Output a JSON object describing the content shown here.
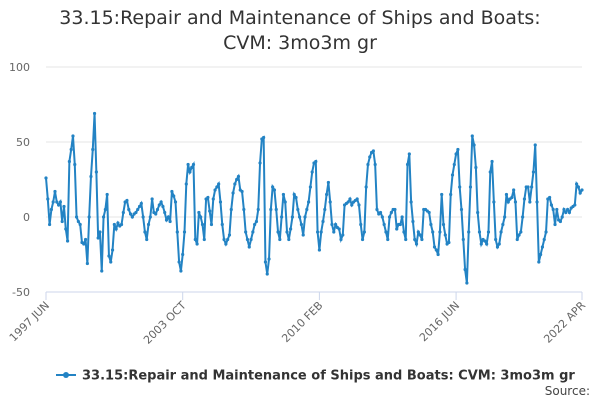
{
  "chart_data": {
    "type": "line",
    "title": "33.15:Repair and Maintenance of Ships and Boats: CVM: 3mo3m gr",
    "source": "Source:",
    "categories": [
      "1997 JUN",
      null,
      null,
      null,
      null,
      null,
      null,
      null,
      null,
      null,
      null,
      null,
      null,
      null,
      null,
      null,
      null,
      null,
      null,
      null,
      null,
      null,
      null,
      null,
      null,
      null,
      null,
      null,
      null,
      null,
      null,
      null,
      null,
      null,
      null,
      null,
      null,
      null,
      null,
      null,
      null,
      null,
      null,
      null,
      null,
      null,
      null,
      null,
      null,
      null,
      null,
      null,
      null,
      null,
      null,
      null,
      null,
      null,
      null,
      null,
      null,
      null,
      null,
      null,
      null,
      null,
      null,
      null,
      null,
      null,
      null,
      null,
      null,
      null,
      null,
      null,
      "2003 OCT",
      null,
      null,
      null,
      null,
      null,
      null,
      null,
      null,
      null,
      null,
      null,
      null,
      null,
      null,
      null,
      null,
      null,
      null,
      null,
      null,
      null,
      null,
      null,
      null,
      null,
      null,
      null,
      null,
      null,
      null,
      null,
      null,
      null,
      null,
      null,
      null,
      null,
      null,
      null,
      null,
      null,
      null,
      null,
      null,
      null,
      null,
      null,
      null,
      null,
      null,
      null,
      null,
      null,
      null,
      null,
      null,
      null,
      null,
      null,
      null,
      null,
      null,
      null,
      null,
      null,
      null,
      null,
      null,
      null,
      null,
      null,
      null,
      null,
      null,
      null,
      "2010 FEB",
      null,
      null,
      null,
      null,
      null,
      null,
      null,
      null,
      null,
      null,
      null,
      null,
      null,
      null,
      null,
      null,
      null,
      null,
      null,
      null,
      null,
      null,
      null,
      null,
      null,
      null,
      null,
      null,
      null,
      null,
      null,
      null,
      null,
      null,
      null,
      null,
      null,
      null,
      null,
      null,
      null,
      null,
      null,
      null,
      null,
      null,
      null,
      null,
      null,
      null,
      null,
      null,
      null,
      null,
      null,
      null,
      null,
      null,
      null,
      null,
      null,
      null,
      null,
      null,
      null,
      null,
      null,
      null,
      null,
      null,
      null,
      null,
      null,
      null,
      null,
      "2016 JUN",
      null,
      null,
      null,
      null,
      null,
      null,
      null,
      null,
      null,
      null,
      null,
      null,
      null,
      null,
      null,
      null,
      null,
      null,
      null,
      null,
      null,
      null,
      null,
      null,
      null,
      null,
      null,
      null,
      null,
      null,
      null,
      null,
      null,
      null,
      null,
      null,
      null,
      null,
      null,
      null,
      null,
      null,
      null,
      null,
      null,
      null,
      null,
      null,
      null,
      null,
      null,
      null,
      null,
      null,
      null,
      null,
      null,
      null,
      null,
      null,
      null,
      null,
      null,
      null,
      null,
      null,
      null,
      null,
      null,
      "2022 APR"
    ],
    "series": [
      {
        "name": "33.15:Repair and Maintenance of Ships and Boats: CVM: 3mo3m gr",
        "color": "#2383c4",
        "values": [
          26,
          12,
          -5,
          5,
          10,
          17,
          10,
          8,
          10,
          -3,
          7,
          -8,
          -16,
          37,
          45,
          54,
          35,
          0,
          -3,
          -5,
          -17,
          -18,
          -15,
          -31,
          0,
          27,
          45,
          69,
          30,
          -14,
          -10,
          -36,
          0,
          5,
          15,
          -26,
          -30,
          -22,
          -5,
          -8,
          -4,
          -6,
          -5,
          3,
          10,
          11,
          5,
          2,
          0,
          2,
          3,
          5,
          7,
          9,
          0,
          -10,
          -15,
          -5,
          0,
          12,
          3,
          2,
          5,
          8,
          10,
          7,
          3,
          -2,
          0,
          -3,
          17,
          14,
          10,
          -10,
          -30,
          -36,
          -25,
          -10,
          22,
          35,
          30,
          33,
          35,
          -15,
          -18,
          3,
          0,
          -5,
          -15,
          12,
          13,
          4,
          -5,
          12,
          18,
          20,
          22,
          10,
          -5,
          -15,
          -18,
          -15,
          -12,
          5,
          16,
          22,
          25,
          27,
          18,
          17,
          5,
          -10,
          -15,
          -20,
          -15,
          -10,
          -5,
          -3,
          5,
          36,
          52,
          53,
          -30,
          -38,
          -28,
          5,
          20,
          18,
          5,
          -10,
          -15,
          0,
          15,
          10,
          -10,
          -15,
          -8,
          0,
          15,
          13,
          5,
          0,
          -5,
          -12,
          0,
          5,
          10,
          20,
          30,
          36,
          37,
          -10,
          -22,
          -10,
          -3,
          5,
          15,
          23,
          10,
          -5,
          -10,
          -5,
          -7,
          -8,
          -15,
          -12,
          8,
          9,
          10,
          12,
          8,
          10,
          11,
          12,
          8,
          -5,
          -15,
          -10,
          20,
          35,
          40,
          43,
          44,
          35,
          5,
          2,
          3,
          0,
          -5,
          -10,
          -15,
          0,
          3,
          5,
          5,
          -8,
          -5,
          -5,
          0,
          -10,
          -15,
          35,
          42,
          10,
          -3,
          -15,
          -18,
          -10,
          -12,
          -15,
          5,
          5,
          4,
          3,
          -5,
          -10,
          -20,
          -22,
          -25,
          -10,
          15,
          -5,
          -12,
          -18,
          -17,
          15,
          28,
          35,
          42,
          45,
          20,
          5,
          -15,
          -35,
          -44,
          -10,
          20,
          54,
          48,
          33,
          3,
          -10,
          -18,
          -15,
          -16,
          -18,
          -10,
          30,
          37,
          10,
          -15,
          -20,
          -18,
          -10,
          -5,
          0,
          15,
          10,
          12,
          13,
          18,
          10,
          -15,
          -12,
          -10,
          0,
          12,
          20,
          20,
          10,
          20,
          30,
          48,
          10,
          -30,
          -25,
          -20,
          -15,
          -10,
          12,
          13,
          8,
          5,
          -5,
          5,
          -2,
          -3,
          0,
          5,
          3,
          5,
          3,
          6,
          7,
          8,
          22,
          20,
          16,
          18
        ]
      }
    ],
    "ylim": [
      -50,
      100
    ],
    "yticks": [
      -50,
      0,
      50,
      100
    ],
    "grid": true
  }
}
